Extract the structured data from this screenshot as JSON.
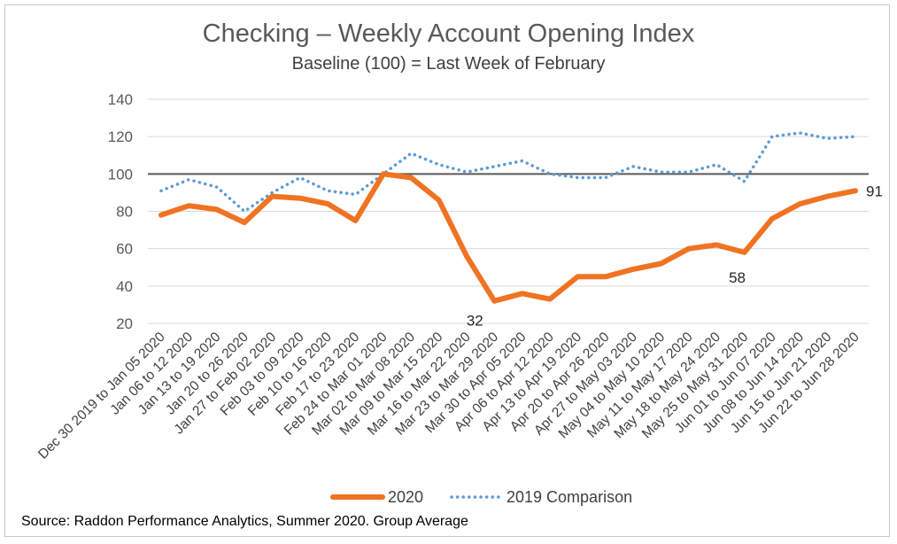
{
  "chart_data": {
    "type": "line",
    "title": "Checking – Weekly Account Opening Index",
    "subtitle": "Baseline (100) = Last Week of February",
    "ylim": [
      20,
      140
    ],
    "yticks": [
      20,
      40,
      60,
      80,
      100,
      120,
      140
    ],
    "reference_line": 100,
    "grid": true,
    "legend_position": "bottom",
    "categories": [
      "Dec 30 2019 to Jan 05 2020",
      "Jan 06 to 12 2020",
      "Jan 13 to 19 2020",
      "Jan 20 to 26 2020",
      "Jan 27 to Feb 02 2020",
      "Feb 03 to 09 2020",
      "Feb 10 to 16 2020",
      "Feb 17 to 23 2020",
      "Feb 24 to Mar 01 2020",
      "Mar 02 to Mar 08 2020",
      "Mar 09 to Mar 15 2020",
      "Mar 16 to Mar 22 2020",
      "Mar 23 to Mar 29 2020",
      "Mar 30 to Apr 05 2020",
      "Apr 06 to Apr 12 2020",
      "Apr 13 to Apr 19 2020",
      "Apr 20 to Apr 26 2020",
      "Apr 27 to May 03 2020",
      "May 04 to May 10 2020",
      "May 11 to May 17 2020",
      "May 18 to May 24 2020",
      "May 25 to May 31 2020",
      "Jun 01 to Jun 07 2020",
      "Jun 08 to Jun 14 2020",
      "Jun 15 to Jun 21 2020",
      "Jun 22 to Jun 28 2020"
    ],
    "series": [
      {
        "name": "2020",
        "color": "#f07322",
        "style": "solid",
        "values": [
          78,
          83,
          81,
          74,
          88,
          87,
          84,
          75,
          100,
          98,
          86,
          56,
          32,
          36,
          33,
          45,
          45,
          49,
          52,
          60,
          62,
          58,
          76,
          84,
          88,
          91
        ]
      },
      {
        "name": "2019 Comparison",
        "color": "#5b9bd5",
        "style": "dotted",
        "values": [
          91,
          97,
          93,
          80,
          90,
          98,
          91,
          89,
          100,
          111,
          105,
          101,
          104,
          107,
          100,
          98,
          98,
          104,
          101,
          101,
          105,
          96,
          120,
          122,
          119,
          120
        ]
      }
    ],
    "data_labels": [
      {
        "series": 0,
        "index": 12,
        "text": "32",
        "position": "below-left"
      },
      {
        "series": 0,
        "index": 21,
        "text": "58",
        "position": "below"
      },
      {
        "series": 0,
        "index": 25,
        "text": "91",
        "position": "right"
      }
    ]
  },
  "source": "Source: Raddon Performance Analytics, Summer 2020. Group Average"
}
